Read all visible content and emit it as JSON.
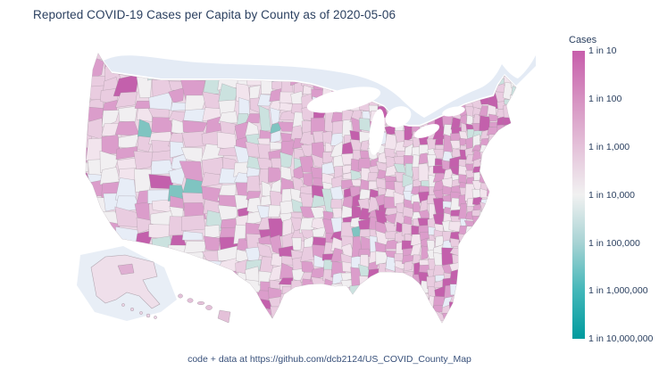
{
  "title": "Reported COVID-19 Cases per Capita by County as of 2020-05-06",
  "footer": "code + data at https://github.com/dcb2124/US_COVID_County_Map",
  "legend": {
    "title": "Cases",
    "ticks": [
      "1 in 10",
      "1 in 100",
      "1 in 1,000",
      "1 in 10,000",
      "1 in 100,000",
      "1 in 1,000,000",
      "1 in 10,000,000"
    ],
    "gradient": [
      "#C75DAB",
      "#D691C1",
      "#E4C1D9",
      "#F1F1F1",
      "#A7D3D4",
      "#42B7B9",
      "#009B9E"
    ]
  },
  "chart_data": {
    "type": "choropleth",
    "title": "Reported COVID-19 Cases per Capita by County as of 2020-05-06",
    "geo_scope": "United States, county level (Albers USA projection with Alaska and Hawaii insets)",
    "colorbar_title": "Cases",
    "scale": "logarithmic rate scale, 1 case per N residents",
    "scale_ticks": [
      "1 in 10",
      "1 in 100",
      "1 in 1,000",
      "1 in 10,000",
      "1 in 100,000",
      "1 in 1,000,000",
      "1 in 10,000,000"
    ],
    "colorscale_stops": [
      {
        "label": "1 in 10",
        "color": "#C75DAB"
      },
      {
        "label": "1 in 100",
        "color": "#D691C1"
      },
      {
        "label": "1 in 1,000",
        "color": "#E4C1D9"
      },
      {
        "label": "1 in 10,000",
        "color": "#F1F1F1"
      },
      {
        "label": "1 in 100,000",
        "color": "#A7D3D4"
      },
      {
        "label": "1 in 1,000,000",
        "color": "#42B7B9"
      },
      {
        "label": "1 in 10,000,000",
        "color": "#009B9E"
      }
    ],
    "visual_summary": [
      "Most counties shade pink, roughly between 1 in 100 and 1 in 10,000 cases per capita",
      "Darkest magenta (near 1 in 10 to 1 in 100): New York City metro corridor, southern Florida (Miami area), Gulf South and Deep South clusters, scattered plains hotspots",
      "Near-white counties (about 1 in 10,000) common in rural plains and mountain west",
      "Scattered pale-teal low-rate counties mostly in the rural West and northern New England",
      "Counties with no reported data render pale blue-gray; Canada/background landmass is pale blue-gray; oceans and lakes are white"
    ]
  },
  "map": {
    "type": "choropleth",
    "colors": {
      "ocean": "#ffffff",
      "canada_land": "#E4EBF5",
      "base": "#ECD7E5",
      "county_border": "#9a8d97",
      "alaska_base": "#EFDFEA",
      "alaska_backdrop": "#E4EBF5",
      "hawaii_base": "#E4C1D9"
    },
    "palette": {
      "dark": "#C360AC",
      "med": "#DB9DCB",
      "light": "#E9CCE0",
      "pale": "#F2E4ED",
      "white": "#F1EFF1",
      "missing": "#E7EDF7",
      "tealPale": "#CBE2DF",
      "teal": "#7FC4C1"
    }
  }
}
